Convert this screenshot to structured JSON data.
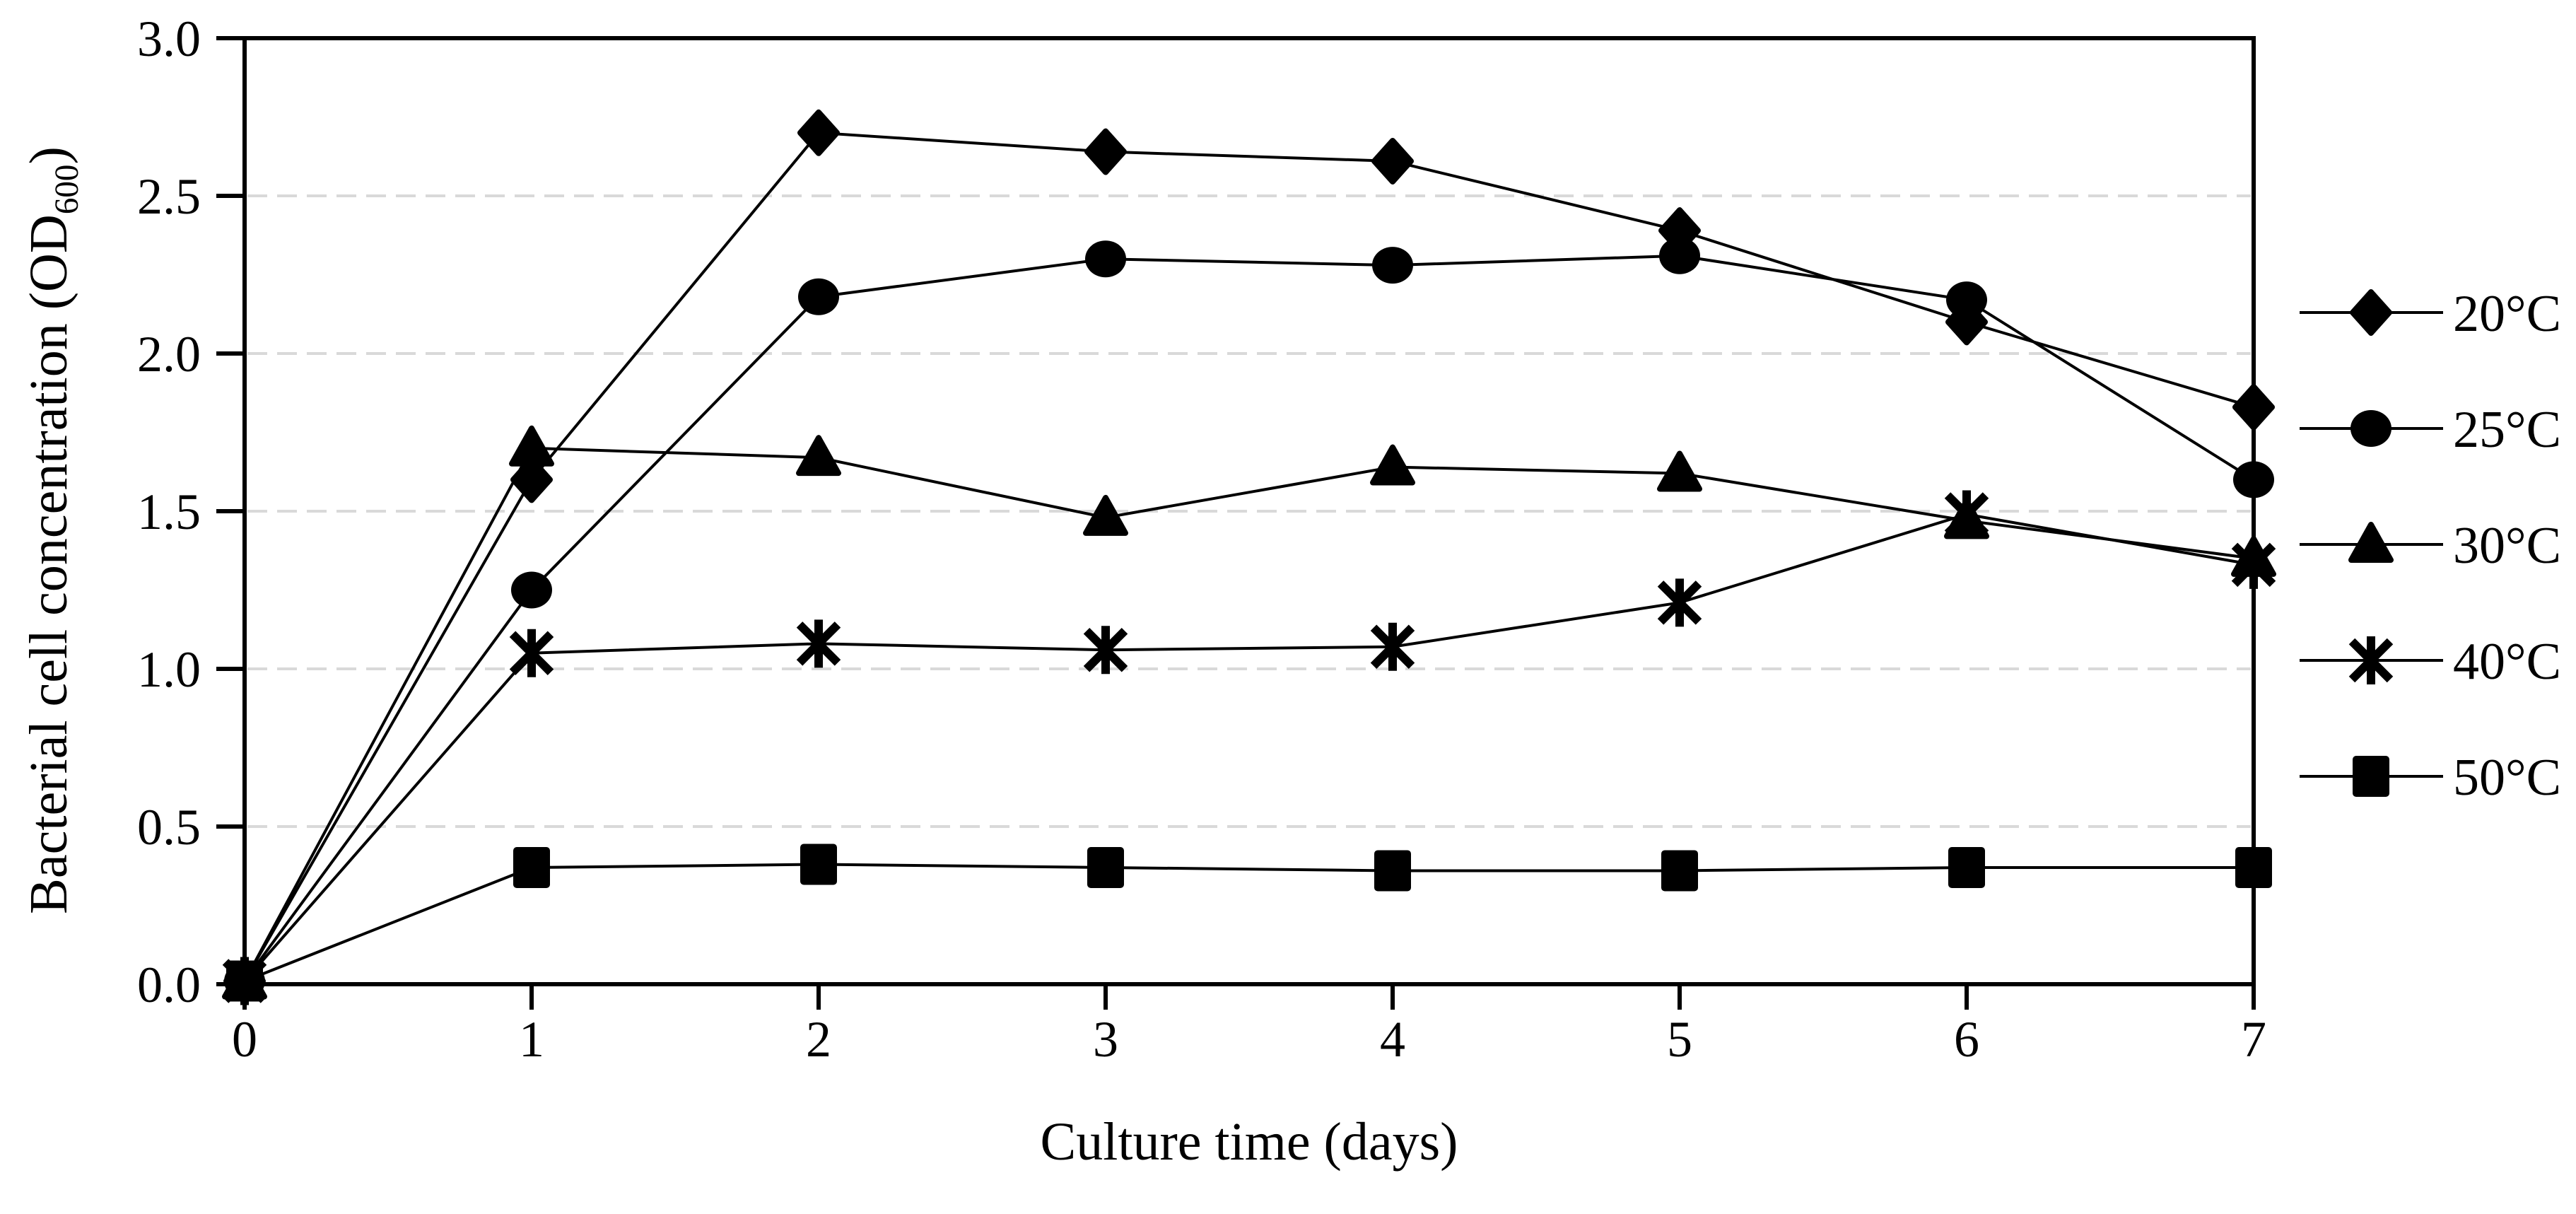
{
  "colors": {
    "foreground": "#000000",
    "gridline": "#d9d9d9",
    "background": "#ffffff"
  },
  "chart_data": {
    "type": "line",
    "title": "",
    "xlabel": "Culture time (days)",
    "ylabel": "Bacterial cell concentration (OD600)",
    "ylabel_parts": {
      "prefix": "Bacterial cell concentration (OD",
      "sub": "600",
      "suffix": ")"
    },
    "x": [
      0,
      1,
      2,
      3,
      4,
      5,
      6,
      7
    ],
    "xlim": [
      0,
      7
    ],
    "ylim": [
      0.0,
      3.0
    ],
    "x_ticks": [
      "0",
      "1",
      "2",
      "3",
      "4",
      "5",
      "6",
      "7"
    ],
    "y_ticks": [
      "0.0",
      "0.5",
      "1.0",
      "1.5",
      "2.0",
      "2.5",
      "3.0"
    ],
    "grid_values": [
      0.5,
      1.0,
      1.5,
      2.0,
      2.5
    ],
    "grid_on": true,
    "legend_position": "right",
    "series": [
      {
        "name": "20°C",
        "marker": "diamond",
        "color": "#000000",
        "values": [
          0.01,
          1.6,
          2.7,
          2.64,
          2.61,
          2.39,
          2.1,
          1.83
        ]
      },
      {
        "name": "25°C",
        "marker": "circle",
        "color": "#000000",
        "values": [
          0.01,
          1.25,
          2.18,
          2.3,
          2.28,
          2.31,
          2.17,
          1.6
        ]
      },
      {
        "name": "30°C",
        "marker": "triangle",
        "color": "#000000",
        "values": [
          0.01,
          1.7,
          1.67,
          1.48,
          1.64,
          1.62,
          1.47,
          1.35
        ]
      },
      {
        "name": "40°C",
        "marker": "asterisk",
        "color": "#000000",
        "values": [
          0.01,
          1.05,
          1.08,
          1.06,
          1.07,
          1.21,
          1.49,
          1.33
        ]
      },
      {
        "name": "50°C",
        "marker": "square",
        "color": "#000000",
        "values": [
          0.01,
          0.37,
          0.38,
          0.37,
          0.36,
          0.36,
          0.37,
          0.37
        ]
      }
    ]
  }
}
